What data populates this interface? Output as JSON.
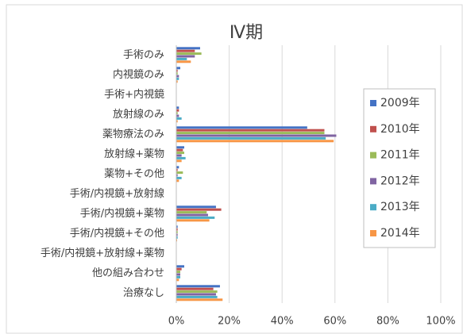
{
  "chart_data": {
    "type": "bar",
    "orientation": "horizontal",
    "title": "Ⅳ期",
    "categories": [
      "手術のみ",
      "内視鏡のみ",
      "手術+内視鏡",
      "放射線のみ",
      "薬物療法のみ",
      "放射線+薬物",
      "薬物+その他",
      "手術/内視鏡+放射線",
      "手術/内視鏡+薬物",
      "手術/内視鏡+その他",
      "手術/内視鏡+放射線+薬物",
      "他の組み合わせ",
      "治療なし"
    ],
    "series": [
      {
        "name": "2009年",
        "color": "#4472c4",
        "values": [
          9,
          1.5,
          0,
          1,
          49.5,
          3,
          1,
          0,
          15,
          0.5,
          0,
          3,
          16.5
        ]
      },
      {
        "name": "2010年",
        "color": "#c0504d",
        "values": [
          7,
          0.5,
          0,
          1,
          56,
          2.5,
          0.5,
          0,
          17,
          0.5,
          0,
          2,
          14
        ]
      },
      {
        "name": "2011年",
        "color": "#9bbb59",
        "values": [
          9.5,
          0.5,
          0,
          0.5,
          56,
          3,
          2.5,
          0,
          11.5,
          0.5,
          0,
          1.5,
          15.5
        ]
      },
      {
        "name": "2012年",
        "color": "#8064a2",
        "values": [
          7,
          1,
          0,
          1,
          60.5,
          2,
          0.5,
          0,
          12,
          0.5,
          0,
          1.5,
          15
        ]
      },
      {
        "name": "2013年",
        "color": "#4bacc6",
        "values": [
          4,
          1,
          0,
          2,
          56.5,
          3.5,
          2,
          0,
          14.5,
          0.5,
          0,
          1.5,
          15.5
        ]
      },
      {
        "name": "2014年",
        "color": "#f79646",
        "values": [
          5.5,
          0.5,
          0,
          0.5,
          59.5,
          2,
          1,
          0,
          12.5,
          0.3,
          0,
          1,
          17.5
        ]
      }
    ],
    "xlim": [
      0,
      100
    ],
    "xticks": [
      {
        "value": 0,
        "label": "0%"
      },
      {
        "value": 20,
        "label": "20%"
      },
      {
        "value": 40,
        "label": "40%"
      },
      {
        "value": 60,
        "label": "60%"
      },
      {
        "value": 80,
        "label": "80%"
      },
      {
        "value": 100,
        "label": "100%"
      }
    ],
    "grid": true,
    "legend": "right"
  }
}
